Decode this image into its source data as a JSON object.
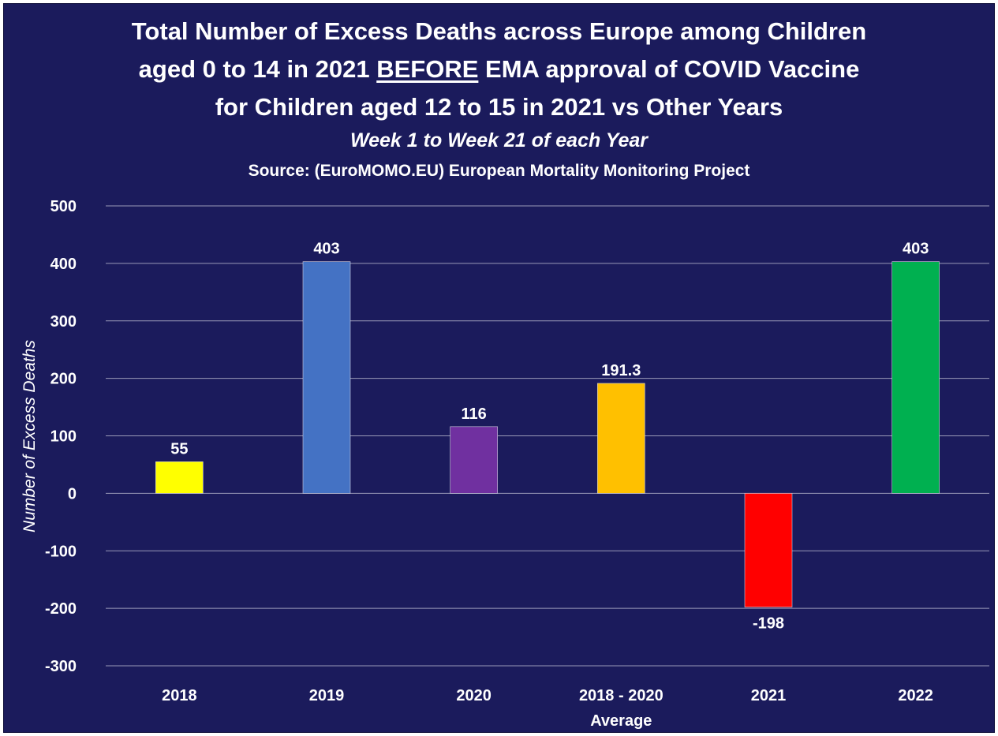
{
  "chart_data": {
    "type": "bar",
    "title_lines": [
      "Total Number of Excess Deaths across Europe among Children",
      "aged 0 to 14 in 2021",
      "BEFORE",
      "EMA approval of COVID Vaccine",
      "for Children aged 12 to 15 in 2021 vs Other Years"
    ],
    "subtitle": "Week 1 to Week 21 of each Year",
    "source": "Source: (EuroMOMO.EU) European Mortality Monitoring Project",
    "ylabel": "Number of Excess Deaths",
    "xlabel": "",
    "ylim": [
      -300,
      500
    ],
    "yticks": [
      500,
      400,
      300,
      200,
      100,
      0,
      -100,
      -200,
      -300
    ],
    "grid": true,
    "categories": [
      {
        "label": "2018",
        "sublabel": ""
      },
      {
        "label": "2019",
        "sublabel": ""
      },
      {
        "label": "2020",
        "sublabel": ""
      },
      {
        "label": "2018 - 2020",
        "sublabel": "Average"
      },
      {
        "label": "2021",
        "sublabel": ""
      },
      {
        "label": "2022",
        "sublabel": ""
      }
    ],
    "values": [
      55,
      403,
      116,
      191.3,
      -198,
      403
    ],
    "data_labels": [
      "55",
      "403",
      "116",
      "191.3",
      "-198",
      "403"
    ],
    "colors": [
      "#ffff00",
      "#4472c4",
      "#7030a0",
      "#ffc000",
      "#ff0000",
      "#00b050"
    ]
  },
  "colors": {
    "background": "#1b1b5c",
    "text": "#ffffff",
    "gridline": "#9a9ab8"
  }
}
